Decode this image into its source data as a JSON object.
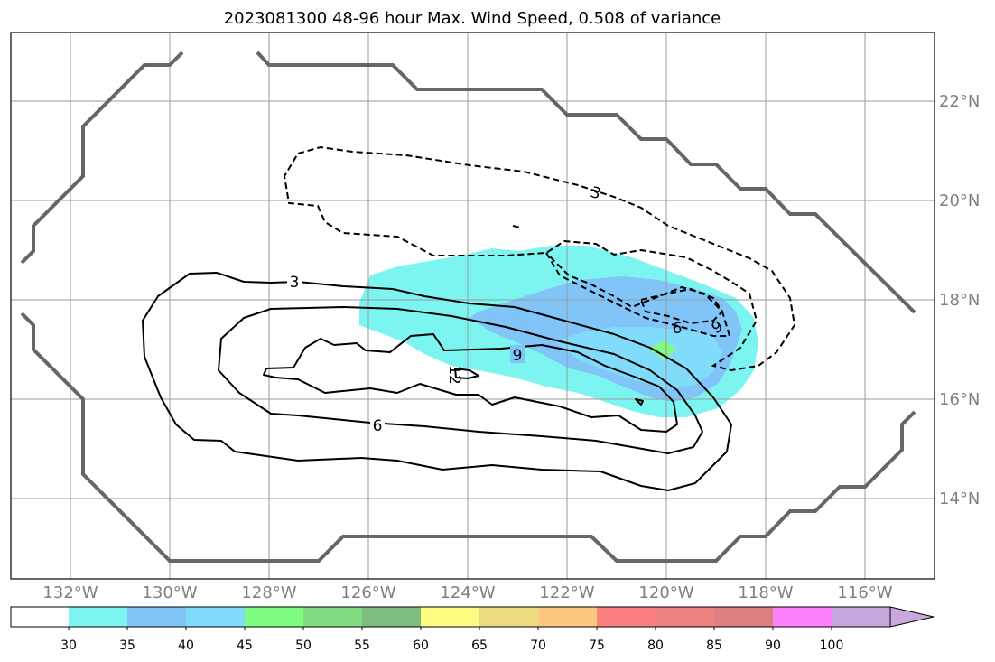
{
  "chart_data": {
    "type": "contour-map",
    "title": "2023081300 48-96 hour Max. Wind Speed, 0.508 of variance",
    "x_ticks": [
      "132°W",
      "130°W",
      "128°W",
      "126°W",
      "124°W",
      "122°W",
      "120°W",
      "118°W",
      "116°W"
    ],
    "y_ticks": [
      "14°N",
      "16°N",
      "18°N",
      "20°N",
      "22°N"
    ],
    "x_range_lon": [
      -133.2,
      -114.6
    ],
    "y_range_lat": [
      12.5,
      23.4
    ],
    "grid": true,
    "colorbar": {
      "ticks": [
        "30",
        "35",
        "40",
        "45",
        "50",
        "55",
        "60",
        "65",
        "70",
        "75",
        "80",
        "85",
        "90",
        "100"
      ],
      "colors": [
        "#ffffff",
        "#7cf5f0",
        "#80c4f8",
        "#80dcfa",
        "#80fc80",
        "#80dc80",
        "#80be80",
        "#fdfb80",
        "#eddc80",
        "#fcc880",
        "#fd8080",
        "#ee8080",
        "#de8080",
        "#fd80fd",
        "#c8a8de"
      ],
      "extend": "max"
    },
    "contour_labels": {
      "solid": [
        "3",
        "6",
        "9",
        "12"
      ],
      "dashed": [
        "3",
        "6",
        "9"
      ]
    },
    "shading_levels": [
      "30–35",
      "35–40",
      "45–50"
    ]
  }
}
